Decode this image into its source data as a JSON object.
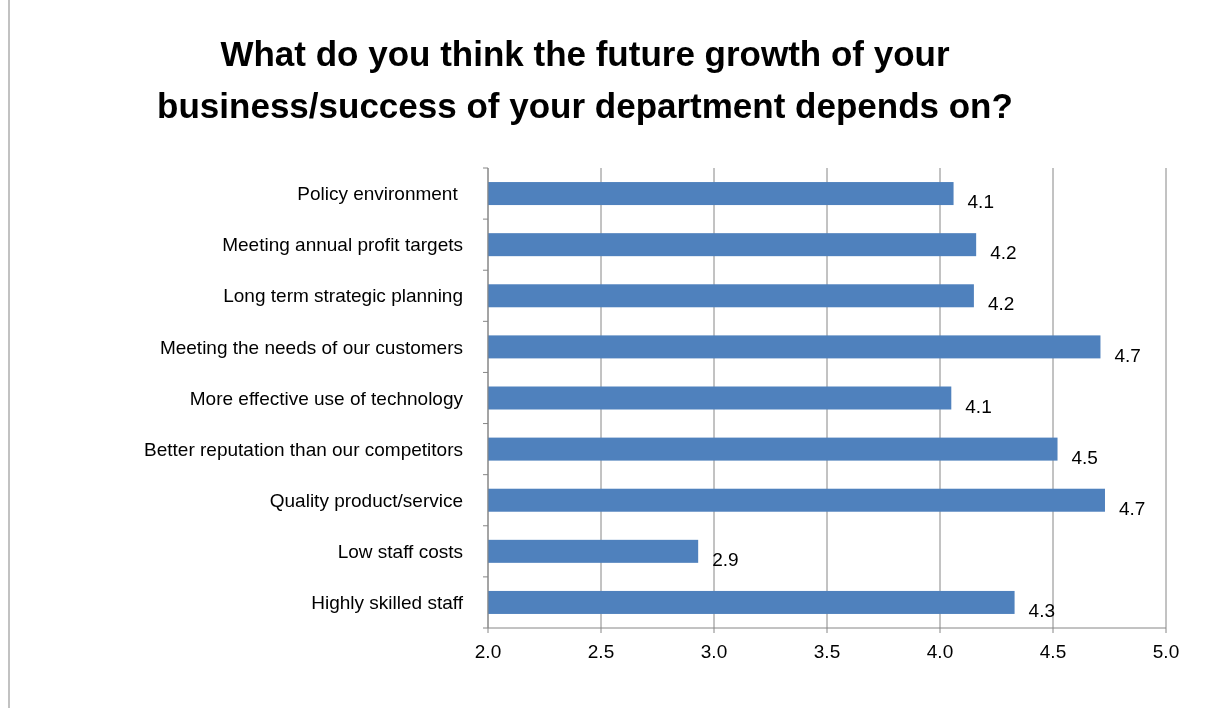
{
  "chart_data": {
    "type": "bar",
    "orientation": "horizontal",
    "title": "What do you think the future growth of your business/success of your department depends on?",
    "categories": [
      "Policy environment ",
      "Meeting annual profit targets",
      "Long term strategic planning",
      "Meeting the needs of our customers",
      "More effective use of technology",
      "Better reputation than our competitors",
      "Quality product/service",
      "Low staff costs",
      "Highly skilled staff"
    ],
    "values": [
      4.06,
      4.16,
      4.15,
      4.71,
      4.05,
      4.52,
      4.73,
      2.93,
      4.33
    ],
    "value_labels": [
      "4.1",
      "4.2",
      "4.2",
      "4.7",
      "4.1",
      "4.5",
      "4.7",
      "2.9",
      "4.3"
    ],
    "color": "#4f81bd",
    "xlim": [
      2,
      5
    ],
    "xticks": [
      {
        "value": 2,
        "label": "2.0"
      },
      {
        "value": 2.5,
        "label": "2.5"
      },
      {
        "value": 3,
        "label": "3.0"
      },
      {
        "value": 3.5,
        "label": "3.5"
      },
      {
        "value": 4,
        "label": "4.0"
      },
      {
        "value": 4.5,
        "label": "4.5"
      },
      {
        "value": 5,
        "label": "5.0"
      }
    ],
    "grid": "x"
  }
}
